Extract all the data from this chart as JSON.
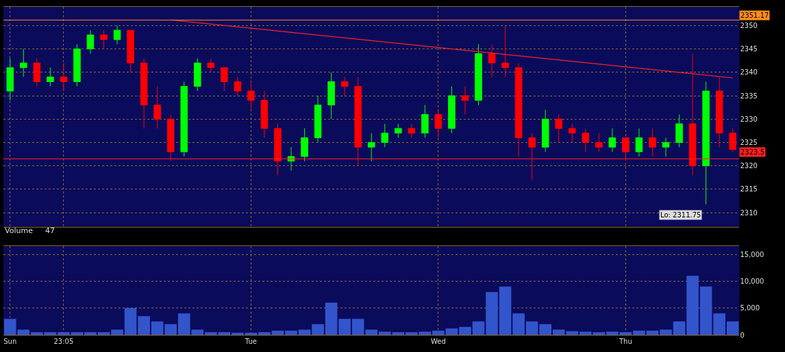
{
  "chart_data": [
    {
      "type": "candlestick",
      "tick_labels": "y",
      "grid": true,
      "categories": [
        null,
        null,
        null,
        null,
        null,
        null,
        null,
        null,
        null,
        null,
        null,
        null,
        null,
        null,
        null,
        null,
        null,
        null,
        null,
        null,
        null,
        null,
        null,
        null,
        null,
        null,
        null,
        null,
        null,
        null,
        null,
        null,
        null,
        null,
        null,
        null,
        null,
        null,
        null,
        null,
        null,
        null,
        null,
        null,
        null,
        null,
        null,
        null,
        null,
        null,
        null,
        null,
        null,
        null,
        null
      ],
      "colors": [
        "#00ff00",
        "#00ff00",
        "#ff0000",
        "#00ff00",
        "#ff0000",
        "#00ff00",
        "#00ff00",
        "#ff0000",
        "#00ff00",
        "#ff0000",
        "#ff0000",
        "#ff0000",
        "#ff0000",
        "#00ff00",
        "#00ff00",
        "#ff0000",
        "#ff0000",
        "#ff0000",
        "#ff0000",
        "#ff0000",
        "#ff0000",
        "#00ff00",
        "#00ff00",
        "#00ff00",
        "#00ff00",
        "#ff0000",
        "#ff0000",
        "#00ff00",
        "#00ff00",
        "#00ff00",
        "#ff0000",
        "#00ff00",
        "#ff0000",
        "#00ff00",
        "#ff0000",
        "#00ff00",
        "#ff0000",
        "#ff0000",
        "#ff0000",
        "#ff0000",
        "#00ff00",
        "#ff0000",
        "#ff0000",
        "#ff0000",
        "#ff0000",
        "#00ff00",
        "#ff0000",
        "#00ff00",
        "#ff0000",
        "#00ff00",
        "#00ff00",
        "#ff0000",
        "#00ff00",
        "#ff0000",
        "#ff0000"
      ],
      "ohlc": [
        [
          2336,
          2343,
          2334,
          2341
        ],
        [
          2341,
          2345,
          2339,
          2342
        ],
        [
          2342,
          2343,
          2337,
          2338
        ],
        [
          2338,
          2341,
          2337,
          2339
        ],
        [
          2339,
          2342,
          2336,
          2338
        ],
        [
          2338,
          2346,
          2337,
          2345
        ],
        [
          2345,
          2349,
          2344,
          2348
        ],
        [
          2348,
          2349,
          2345,
          2347
        ],
        [
          2347,
          2350,
          2346,
          2349
        ],
        [
          2349,
          2349,
          2340,
          2342
        ],
        [
          2342,
          2343,
          2328,
          2333
        ],
        [
          2333,
          2337,
          2328,
          2330
        ],
        [
          2330,
          2331,
          2321,
          2323
        ],
        [
          2323,
          2338,
          2322,
          2337
        ],
        [
          2337,
          2343,
          2336,
          2342
        ],
        [
          2342,
          2343,
          2340,
          2341
        ],
        [
          2341,
          2341,
          2336,
          2338
        ],
        [
          2338,
          2339,
          2335,
          2336
        ],
        [
          2336,
          2338,
          2332,
          2334
        ],
        [
          2334,
          2336,
          2326,
          2328
        ],
        [
          2328,
          2329,
          2318,
          2321
        ],
        [
          2321,
          2324,
          2319,
          2322
        ],
        [
          2322,
          2328,
          2321,
          2326
        ],
        [
          2326,
          2335,
          2325,
          2333
        ],
        [
          2333,
          2340,
          2330,
          2338
        ],
        [
          2338,
          2339,
          2335,
          2337
        ],
        [
          2337,
          2339,
          2320,
          2324
        ],
        [
          2324,
          2327,
          2321,
          2325
        ],
        [
          2325,
          2329,
          2324,
          2327
        ],
        [
          2327,
          2329,
          2326,
          2328
        ],
        [
          2328,
          2329,
          2326,
          2327
        ],
        [
          2327,
          2333,
          2326,
          2331
        ],
        [
          2331,
          2332,
          2326,
          2328
        ],
        [
          2328,
          2337,
          2327,
          2335
        ],
        [
          2335,
          2337,
          2331,
          2334
        ],
        [
          2334,
          2346,
          2333,
          2344
        ],
        [
          2344,
          2346,
          2339,
          2342
        ],
        [
          2342,
          2350,
          2339,
          2341
        ],
        [
          2341,
          2342,
          2322,
          2326
        ],
        [
          2326,
          2327,
          2317,
          2324
        ],
        [
          2324,
          2332,
          2323,
          2330
        ],
        [
          2330,
          2331,
          2325,
          2328
        ],
        [
          2328,
          2329,
          2325,
          2327
        ],
        [
          2327,
          2328,
          2323,
          2325
        ],
        [
          2325,
          2327,
          2323,
          2324
        ],
        [
          2324,
          2328,
          2323,
          2326
        ],
        [
          2326,
          2326,
          2321,
          2323
        ],
        [
          2323,
          2328,
          2322,
          2326
        ],
        [
          2326,
          2328,
          2322,
          2324
        ],
        [
          2324,
          2326,
          2322,
          2325
        ],
        [
          2325,
          2331,
          2324,
          2329
        ],
        [
          2329,
          2344,
          2318,
          2320
        ],
        [
          2320,
          2338,
          2311.75,
          2336
        ],
        [
          2336,
          2339,
          2324,
          2327
        ],
        [
          2327,
          2328,
          2323,
          2323.5
        ]
      ],
      "series": [
        {
          "type": "line",
          "color": "#ff2020",
          "values": [
            null,
            null,
            null,
            null,
            null,
            null,
            null,
            null,
            null,
            null,
            null,
            null,
            2351.2,
            null,
            null,
            null,
            null,
            null,
            null,
            null,
            null,
            null,
            null,
            null,
            null,
            null,
            null,
            null,
            null,
            null,
            null,
            null,
            null,
            null,
            null,
            null,
            null,
            null,
            null,
            null,
            null,
            null,
            null,
            null,
            null,
            null,
            null,
            null,
            null,
            null,
            null,
            null,
            null,
            null,
            2338.8
          ]
        }
      ],
      "ylim": [
        2307,
        2354
      ],
      "yticks": [
        2310,
        2315,
        2320,
        2325,
        2330,
        2335,
        2340,
        2345,
        2350
      ],
      "ref_lines": [
        {
          "axis": "y",
          "value": 2321.5,
          "color": "#ff2020"
        },
        {
          "axis": "y",
          "value": 2351.17,
          "label": "2351.17",
          "color": "#ff8c1a"
        }
      ],
      "annotations": [
        "Lo: 2311.75",
        "2323.5"
      ]
    },
    {
      "type": "bar",
      "title": "Volume",
      "annotations": [
        "47"
      ],
      "grid": true,
      "categories": [
        "Sun",
        null,
        null,
        null,
        "23:05",
        null,
        null,
        null,
        null,
        null,
        null,
        null,
        null,
        null,
        null,
        null,
        null,
        null,
        "Tue",
        null,
        null,
        null,
        null,
        null,
        null,
        null,
        null,
        null,
        null,
        null,
        null,
        null,
        "Wed",
        null,
        null,
        null,
        null,
        null,
        null,
        null,
        null,
        null,
        null,
        null,
        null,
        null,
        "Thu",
        null,
        null,
        null,
        null,
        null,
        null,
        null,
        null
      ],
      "color": "#3355cc",
      "values": [
        3000,
        1000,
        500,
        500,
        500,
        500,
        500,
        500,
        1000,
        5000,
        3500,
        2500,
        2000,
        4000,
        1000,
        500,
        500,
        400,
        400,
        500,
        800,
        800,
        1000,
        2000,
        6000,
        3000,
        3000,
        1000,
        600,
        500,
        500,
        600,
        800,
        1200,
        1500,
        2500,
        8000,
        9000,
        4000,
        2500,
        2000,
        1000,
        700,
        600,
        500,
        600,
        500,
        800,
        800,
        1000,
        2500,
        11000,
        9000,
        4000,
        2500
      ],
      "ylim": [
        0,
        16500
      ],
      "yticks": [
        0,
        {
          "value": 5000,
          "label": "5,000"
        },
        {
          "value": 10000,
          "label": "10,000"
        },
        {
          "value": 15000,
          "label": "15,000"
        }
      ]
    }
  ]
}
